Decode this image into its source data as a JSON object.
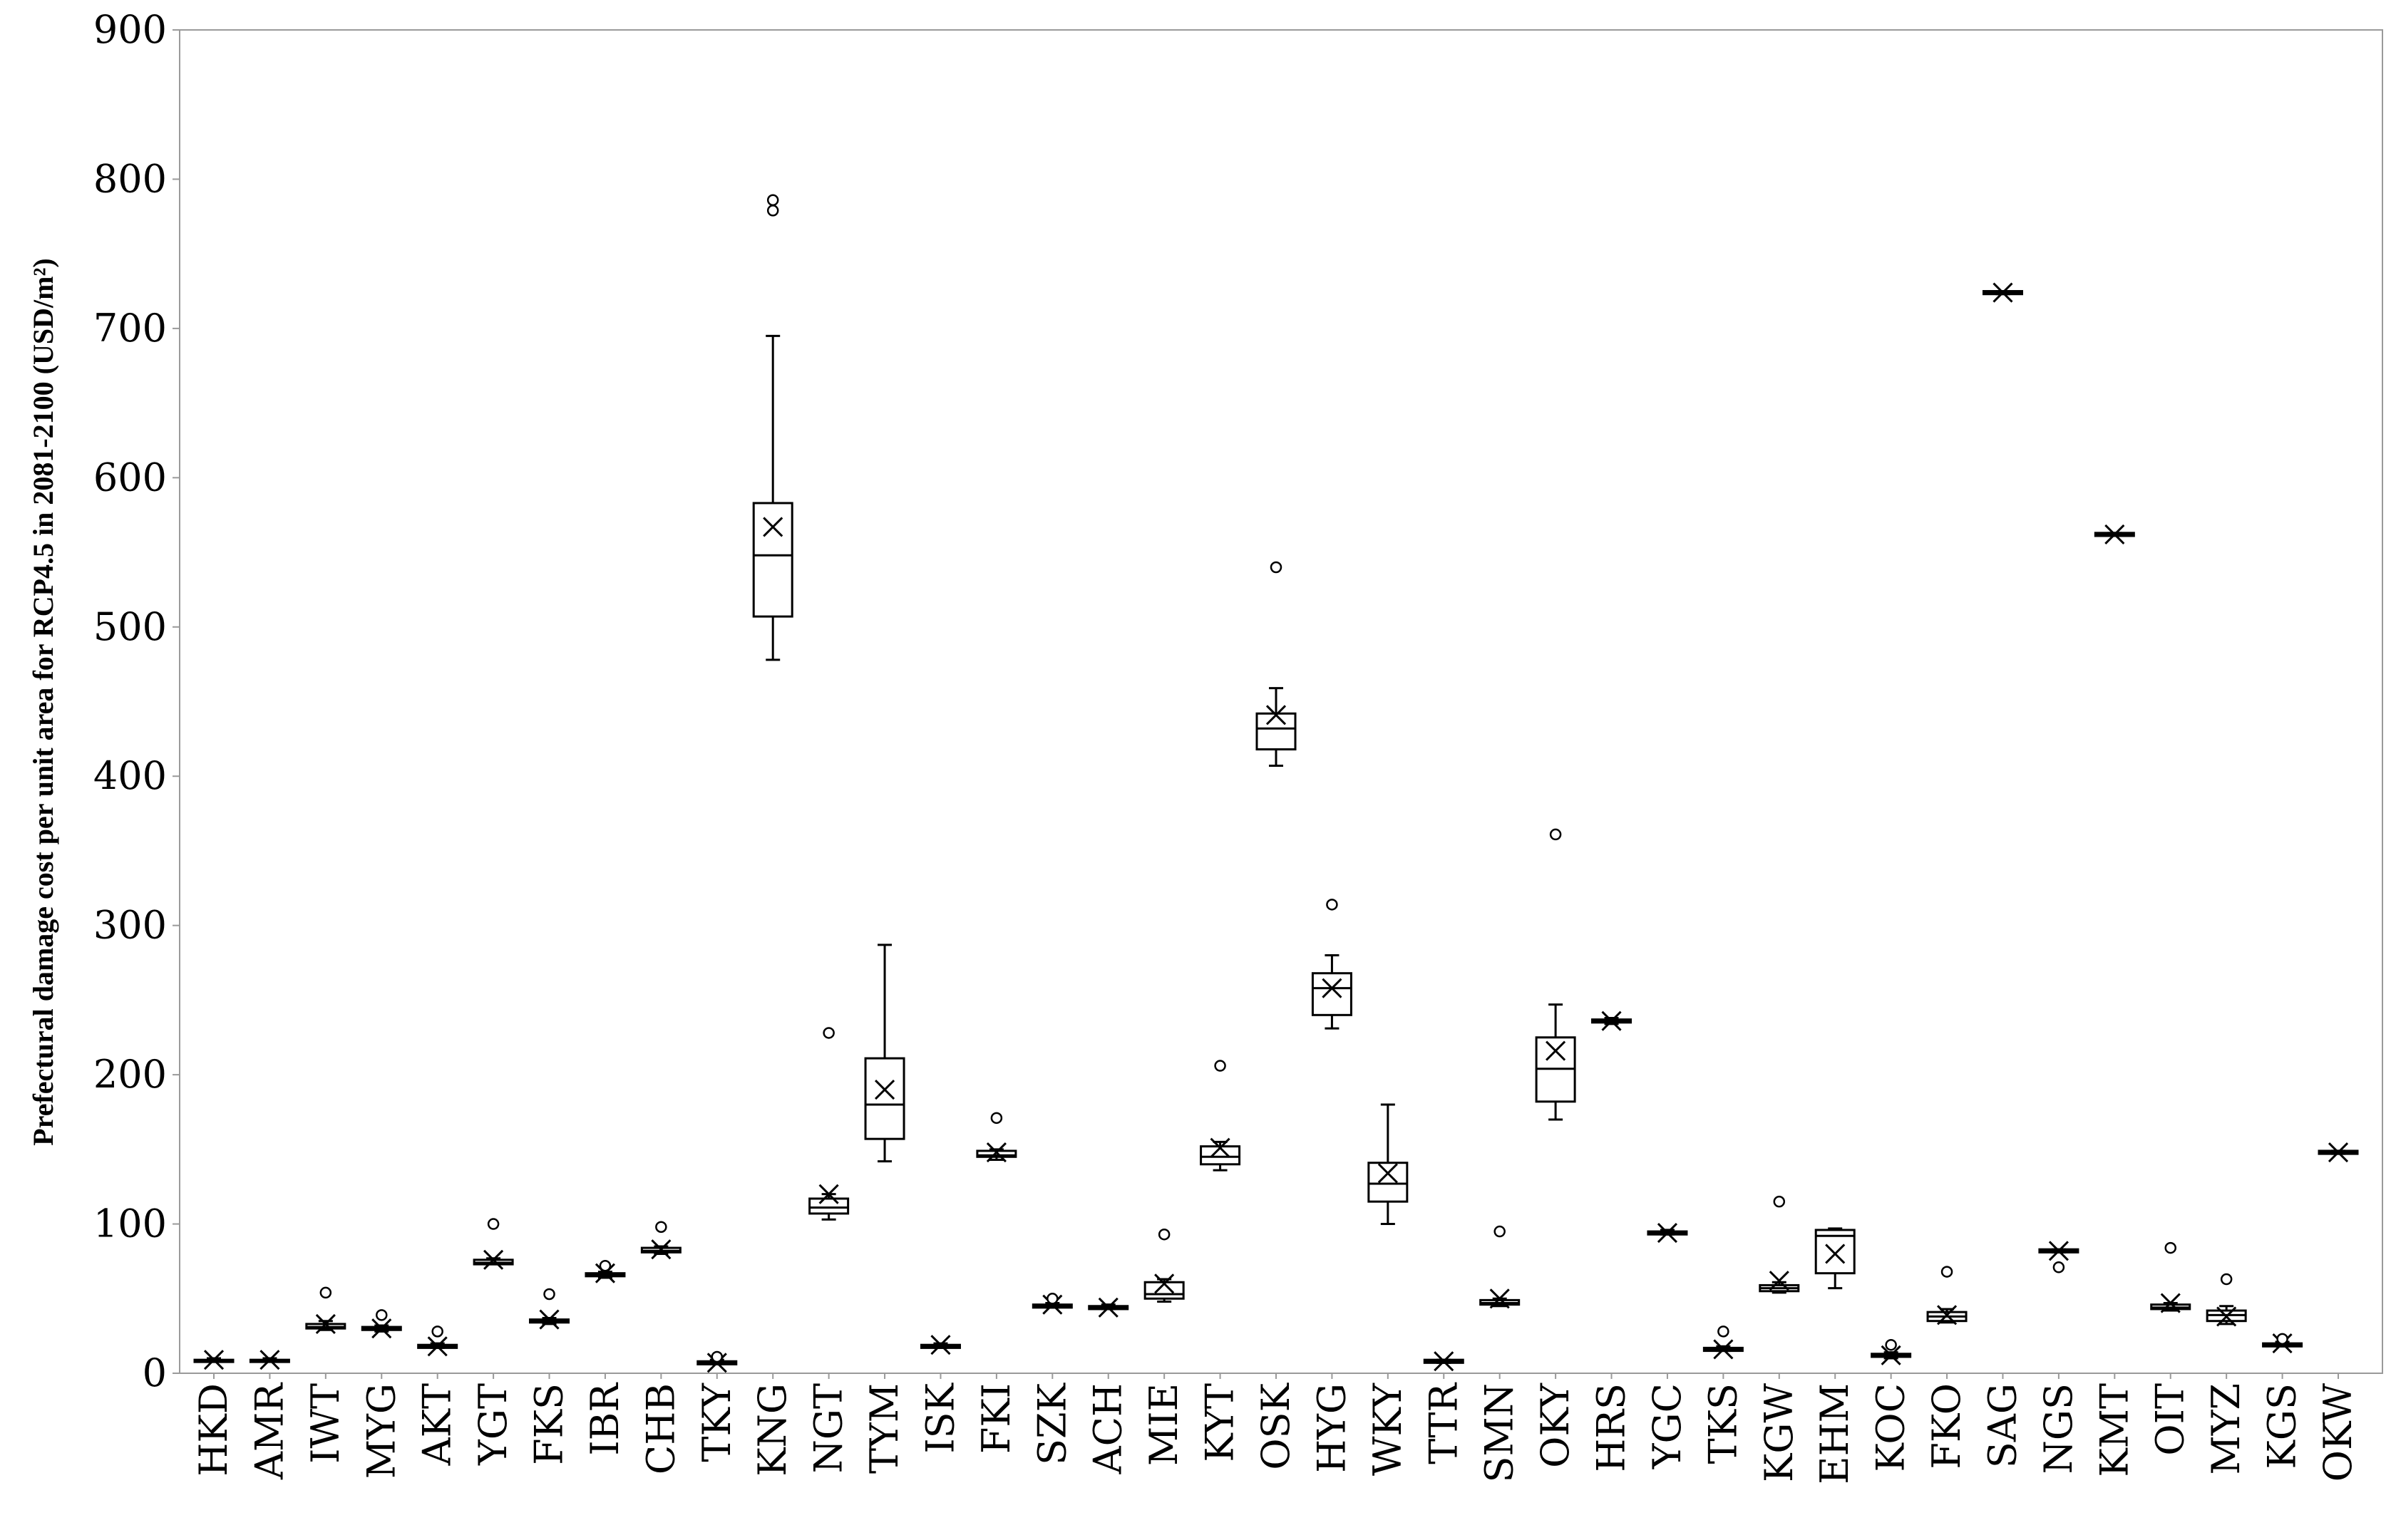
{
  "chart_data": {
    "type": "box",
    "title": "",
    "xlabel": "",
    "ylabel": "Prefectural damage cost per unit area for RCP4.5 in 2081-2100  (USD/m²)",
    "ylim": [
      0,
      900
    ],
    "yticks": [
      0,
      100,
      200,
      300,
      400,
      500,
      600,
      700,
      800,
      900
    ],
    "ytick_labels": [
      "0",
      "100",
      "200",
      "300",
      "400",
      "500",
      "600",
      "700",
      "800",
      "900"
    ],
    "grid": false,
    "legend": "none",
    "categories": [
      "HKD",
      "AMR",
      "IWT",
      "MYG",
      "AKT",
      "YGT",
      "FKS",
      "IBR",
      "CHB",
      "TKY",
      "KNG",
      "NGT",
      "TYM",
      "ISK",
      "FKI",
      "SZK",
      "ACH",
      "MIE",
      "KYT",
      "OSK",
      "HYG",
      "WKY",
      "TTR",
      "SMN",
      "OKY",
      "HRS",
      "YGC",
      "TKS",
      "KGW",
      "EHM",
      "KOC",
      "FKO",
      "SAG",
      "NGS",
      "KMT",
      "OIT",
      "MYZ",
      "KGS",
      "OKW"
    ],
    "boxes": [
      {
        "min": 8,
        "q1": 8,
        "median": 8,
        "q3": 9,
        "max": 10,
        "mean": 9,
        "outliers": []
      },
      {
        "min": 8,
        "q1": 8,
        "median": 8,
        "q3": 9,
        "max": 10,
        "mean": 9,
        "outliers": []
      },
      {
        "min": 29,
        "q1": 30,
        "median": 31,
        "q3": 33,
        "max": 35,
        "mean": 33,
        "outliers": [
          54
        ]
      },
      {
        "min": 28,
        "q1": 29,
        "median": 30,
        "q3": 31,
        "max": 32,
        "mean": 30,
        "outliers": [
          39
        ]
      },
      {
        "min": 17,
        "q1": 17,
        "median": 18,
        "q3": 19,
        "max": 20,
        "mean": 18,
        "outliers": [
          28
        ]
      },
      {
        "min": 73,
        "q1": 73,
        "median": 74,
        "q3": 76,
        "max": 77,
        "mean": 76,
        "outliers": [
          100
        ]
      },
      {
        "min": 33,
        "q1": 34,
        "median": 35,
        "q3": 36,
        "max": 37,
        "mean": 36,
        "outliers": [
          53
        ]
      },
      {
        "min": 64,
        "q1": 65,
        "median": 66,
        "q3": 67,
        "max": 68,
        "mean": 67,
        "outliers": [
          72
        ]
      },
      {
        "min": 80,
        "q1": 81,
        "median": 82,
        "q3": 84,
        "max": 85,
        "mean": 83,
        "outliers": [
          98
        ]
      },
      {
        "min": 6,
        "q1": 6,
        "median": 7,
        "q3": 8,
        "max": 9,
        "mean": 7,
        "outliers": [
          11
        ]
      },
      {
        "min": 478,
        "q1": 507,
        "median": 548,
        "q3": 583,
        "max": 695,
        "mean": 567,
        "outliers": [
          779,
          786
        ]
      },
      {
        "min": 103,
        "q1": 107,
        "median": 111,
        "q3": 117,
        "max": 120,
        "mean": 120,
        "outliers": [
          228
        ]
      },
      {
        "min": 142,
        "q1": 157,
        "median": 180,
        "q3": 211,
        "max": 287,
        "mean": 190,
        "outliers": []
      },
      {
        "min": 17,
        "q1": 17,
        "median": 18,
        "q3": 19,
        "max": 20,
        "mean": 19,
        "outliers": []
      },
      {
        "min": 143,
        "q1": 145,
        "median": 146,
        "q3": 149,
        "max": 150,
        "mean": 148,
        "outliers": [
          171
        ]
      },
      {
        "min": 44,
        "q1": 44,
        "median": 45,
        "q3": 46,
        "max": 47,
        "mean": 46,
        "outliers": [
          50
        ]
      },
      {
        "min": 43,
        "q1": 43,
        "median": 44,
        "q3": 45,
        "max": 46,
        "mean": 44,
        "outliers": []
      },
      {
        "min": 48,
        "q1": 50,
        "median": 53,
        "q3": 61,
        "max": 63,
        "mean": 60,
        "outliers": [
          93
        ]
      },
      {
        "min": 136,
        "q1": 140,
        "median": 145,
        "q3": 152,
        "max": 155,
        "mean": 151,
        "outliers": [
          206
        ]
      },
      {
        "min": 407,
        "q1": 418,
        "median": 432,
        "q3": 442,
        "max": 459,
        "mean": 441,
        "outliers": [
          540
        ]
      },
      {
        "min": 231,
        "q1": 240,
        "median": 258,
        "q3": 268,
        "max": 280,
        "mean": 258,
        "outliers": [
          314
        ]
      },
      {
        "min": 100,
        "q1": 115,
        "median": 127,
        "q3": 141,
        "max": 180,
        "mean": 134,
        "outliers": []
      },
      {
        "min": 7,
        "q1": 7,
        "median": 8,
        "q3": 9,
        "max": 9,
        "mean": 8,
        "outliers": []
      },
      {
        "min": 45,
        "q1": 46,
        "median": 47,
        "q3": 49,
        "max": 50,
        "mean": 50,
        "outliers": [
          95
        ]
      },
      {
        "min": 170,
        "q1": 182,
        "median": 204,
        "q3": 225,
        "max": 247,
        "mean": 216,
        "outliers": [
          361
        ]
      },
      {
        "min": 234,
        "q1": 235,
        "median": 236,
        "q3": 237,
        "max": 238,
        "mean": 236,
        "outliers": []
      },
      {
        "min": 93,
        "q1": 93,
        "median": 94,
        "q3": 95,
        "max": 96,
        "mean": 94,
        "outliers": []
      },
      {
        "min": 15,
        "q1": 15,
        "median": 16,
        "q3": 17,
        "max": 18,
        "mean": 16,
        "outliers": [
          28
        ]
      },
      {
        "min": 54,
        "q1": 55,
        "median": 57,
        "q3": 59,
        "max": 61,
        "mean": 62,
        "outliers": [
          115
        ]
      },
      {
        "min": 57,
        "q1": 67,
        "median": 92,
        "q3": 96,
        "max": 97,
        "mean": 80,
        "outliers": []
      },
      {
        "min": 10,
        "q1": 11,
        "median": 12,
        "q3": 13,
        "max": 14,
        "mean": 12,
        "outliers": [
          19
        ]
      },
      {
        "min": 34,
        "q1": 35,
        "median": 38,
        "q3": 41,
        "max": 43,
        "mean": 39,
        "outliers": [
          68
        ]
      },
      {
        "min": 723,
        "q1": 723,
        "median": 724,
        "q3": 725,
        "max": 725,
        "mean": 724,
        "outliers": []
      },
      {
        "min": 81,
        "q1": 81,
        "median": 82,
        "q3": 83,
        "max": 83,
        "mean": 82,
        "outliers": [
          71
        ]
      },
      {
        "min": 561,
        "q1": 561,
        "median": 562,
        "q3": 563,
        "max": 563,
        "mean": 562,
        "outliers": []
      },
      {
        "min": 42,
        "q1": 43,
        "median": 44,
        "q3": 46,
        "max": 47,
        "mean": 47,
        "outliers": [
          84
        ]
      },
      {
        "min": 33,
        "q1": 35,
        "median": 39,
        "q3": 42,
        "max": 45,
        "mean": 38,
        "outliers": [
          63
        ]
      },
      {
        "min": 18,
        "q1": 18,
        "median": 19,
        "q3": 20,
        "max": 21,
        "mean": 20,
        "outliers": [
          23
        ]
      },
      {
        "min": 147,
        "q1": 147,
        "median": 148,
        "q3": 149,
        "max": 149,
        "mean": 148,
        "outliers": []
      }
    ]
  }
}
